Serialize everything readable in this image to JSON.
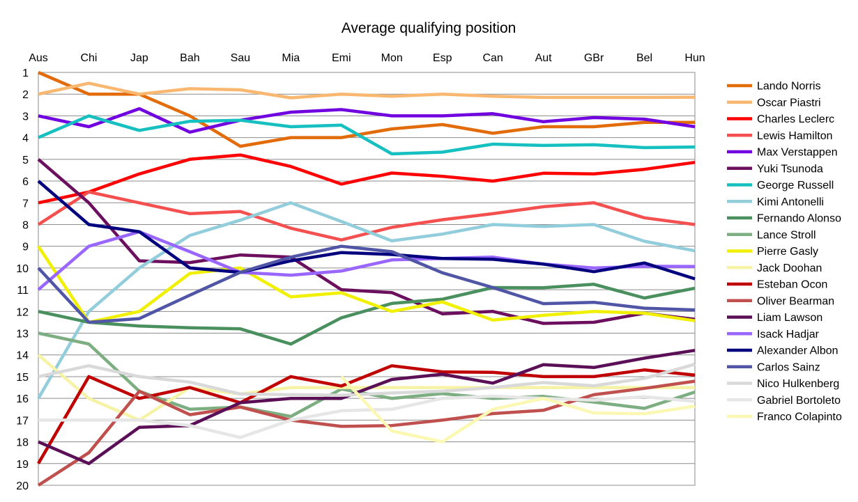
{
  "chart_data": {
    "type": "line",
    "title": "Average qualifying position",
    "xlabel": "",
    "ylabel": "",
    "ylim": [
      1,
      20
    ],
    "y_inverted": true,
    "y_ticks": [
      1,
      2,
      3,
      4,
      5,
      6,
      7,
      8,
      9,
      10,
      11,
      12,
      13,
      14,
      15,
      16,
      17,
      18,
      19,
      20
    ],
    "x_axis_position": "top",
    "grid": "horizontal",
    "legend_position": "right",
    "categories": [
      "Aus",
      "Chi",
      "Jap",
      "Bah",
      "Sau",
      "Mia",
      "Emi",
      "Mon",
      "Esp",
      "Can",
      "Aut",
      "GBr",
      "Bel",
      "Hun"
    ],
    "series": [
      {
        "name": "Lando Norris",
        "color": "#e36c0a",
        "values": [
          1,
          2,
          2,
          3,
          4.4,
          4,
          4,
          3.6,
          3.4,
          3.8,
          3.5,
          3.5,
          3.3,
          3.3
        ]
      },
      {
        "name": "Oscar Piastri",
        "color": "#fab770",
        "values": [
          2,
          1.5,
          2,
          1.75,
          1.8,
          2.17,
          2,
          2.1,
          2,
          2.1,
          2.15,
          2.15,
          2.15,
          2.14
        ]
      },
      {
        "name": "Charles Leclerc",
        "color": "#ff0000",
        "values": [
          7,
          6.5,
          5.67,
          5,
          4.8,
          5.33,
          6.14,
          5.63,
          5.78,
          6,
          5.64,
          5.67,
          5.46,
          5.14
        ]
      },
      {
        "name": "Lewis Hamilton",
        "color": "#f55050",
        "values": [
          8,
          6.5,
          7,
          7.5,
          7.4,
          8.17,
          8.71,
          8.13,
          7.78,
          7.5,
          7.18,
          7,
          7.69,
          8
        ]
      },
      {
        "name": "Max Verstappen",
        "color": "#7000e0",
        "values": [
          3,
          3.5,
          2.67,
          3.75,
          3.2,
          2.83,
          2.71,
          3,
          3,
          2.9,
          3.27,
          3.08,
          3.15,
          3.5
        ]
      },
      {
        "name": "Yuki Tsunoda",
        "color": "#6b0f5e",
        "values": [
          5,
          7,
          9.67,
          9.75,
          9.4,
          9.5,
          11,
          11.13,
          12.11,
          12,
          12.55,
          12.5,
          12.08,
          12.36
        ]
      },
      {
        "name": "George Russell",
        "color": "#17c0c0",
        "values": [
          4,
          3,
          3.67,
          3.25,
          3.2,
          3.5,
          3.43,
          4.75,
          4.67,
          4.3,
          4.36,
          4.33,
          4.46,
          4.43
        ]
      },
      {
        "name": "Kimi Antonelli",
        "color": "#92cddc",
        "values": [
          16,
          12,
          10,
          8.5,
          7.8,
          7,
          7.86,
          8.75,
          8.44,
          8,
          8.09,
          8,
          8.77,
          9.21
        ]
      },
      {
        "name": "Fernando Alonso",
        "color": "#4a8f5e",
        "values": [
          12,
          12.5,
          12.67,
          12.75,
          12.8,
          13.5,
          12.29,
          11.63,
          11.44,
          10.9,
          10.91,
          10.75,
          11.38,
          10.93
        ]
      },
      {
        "name": "Lance Stroll",
        "color": "#7dae82",
        "values": [
          13,
          13.5,
          15.67,
          16.5,
          16.4,
          16.83,
          15.57,
          16,
          15.78,
          16,
          15.91,
          16.17,
          16.46,
          15.71
        ]
      },
      {
        "name": "Pierre Gasly",
        "color": "#f0f000",
        "values": [
          9,
          12.5,
          12,
          10.25,
          10,
          11.33,
          11.14,
          12,
          11.56,
          12.4,
          12.18,
          12,
          12.08,
          12.43
        ]
      },
      {
        "name": "Jack Doohan",
        "color": "#f6f3a6",
        "values": [
          14,
          16,
          17,
          15.5,
          15.8,
          15.5,
          15.5,
          15.5,
          15.5,
          15.5,
          15.5,
          15.5,
          15.5,
          15.5
        ]
      },
      {
        "name": "Esteban Ocon",
        "color": "#c00000",
        "values": [
          19,
          15,
          16,
          15.5,
          16.2,
          15,
          15.43,
          14.5,
          14.78,
          14.8,
          15,
          15,
          14.69,
          14.93
        ]
      },
      {
        "name": "Oliver Bearman",
        "color": "#c0504d",
        "values": [
          20,
          18.5,
          15.67,
          16.75,
          16.4,
          17,
          17.29,
          17.25,
          17,
          16.7,
          16.55,
          15.83,
          15.54,
          15.21
        ]
      },
      {
        "name": "Liam Lawson",
        "color": "#5b0f57",
        "values": [
          18,
          19,
          17.33,
          17.25,
          16.2,
          16,
          16,
          15.13,
          14.89,
          15.3,
          14.45,
          14.58,
          14.15,
          13.79
        ]
      },
      {
        "name": "Isack Hadjar",
        "color": "#9966ff",
        "values": [
          11,
          9,
          8.33,
          9.25,
          10.2,
          10.33,
          10.14,
          9.63,
          9.56,
          9.5,
          9.82,
          10,
          9.92,
          9.93
        ]
      },
      {
        "name": "Alexander Albon",
        "color": "#00007f",
        "values": [
          6,
          8,
          8.33,
          10,
          10.2,
          9.67,
          9.29,
          9.38,
          9.56,
          9.6,
          9.82,
          10.17,
          9.77,
          10.5
        ]
      },
      {
        "name": "Carlos Sainz",
        "color": "#5055a6",
        "values": [
          10,
          12.5,
          12.33,
          11.25,
          10.2,
          9.5,
          9,
          9.25,
          10.22,
          10.9,
          11.64,
          11.58,
          11.85,
          11.93
        ]
      },
      {
        "name": "Nico Hulkenberg",
        "color": "#d9d9d9",
        "values": [
          15,
          14.5,
          15,
          15.25,
          15.8,
          15.83,
          15.86,
          15.75,
          15.67,
          15.5,
          15.27,
          15.42,
          15.08,
          14.43
        ]
      },
      {
        "name": "Gabriel Bortoleto",
        "color": "#e6e6e6",
        "values": [
          17,
          17,
          17,
          17.25,
          17.8,
          17,
          16.57,
          16.5,
          16,
          15.9,
          16,
          16.08,
          15.92,
          16.14
        ]
      },
      {
        "name": "Franco Colapinto",
        "color": "#fbf8b4",
        "values": [
          null,
          null,
          null,
          null,
          null,
          null,
          15,
          17.5,
          18,
          16.5,
          16,
          16.67,
          16.71,
          16.36
        ]
      }
    ]
  }
}
